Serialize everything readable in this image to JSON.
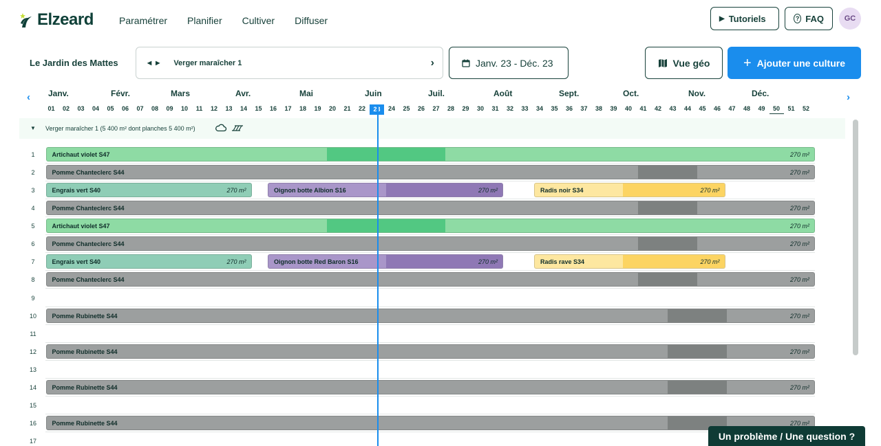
{
  "header": {
    "brand": "Elzeard",
    "nav": [
      "Paramétrer",
      "Planifier",
      "Cultiver",
      "Diffuser"
    ],
    "tutorials_label": "Tutoriels",
    "faq_label": "FAQ",
    "avatar_initials": "GC"
  },
  "toolbar": {
    "farm_name": "Le Jardin des Mattes",
    "plot_name": "Verger maraîcher 1",
    "date_range": "Janv. 23 - Déc. 23",
    "geo_view_label": "Vue géo",
    "add_crop_label": "Ajouter une culture"
  },
  "timeline": {
    "months": [
      "Janv.",
      "Févr.",
      "Mars",
      "Avr.",
      "Mai",
      "Juin",
      "Juil.",
      "Août",
      "Sept.",
      "Oct.",
      "Nov.",
      "Déc."
    ],
    "weeks": [
      "01",
      "02",
      "03",
      "04",
      "05",
      "06",
      "07",
      "08",
      "09",
      "10",
      "11",
      "12",
      "13",
      "14",
      "15",
      "16",
      "17",
      "18",
      "19",
      "20",
      "21",
      "22",
      "23",
      "24",
      "25",
      "26",
      "27",
      "28",
      "29",
      "30",
      "31",
      "32",
      "33",
      "34",
      "35",
      "36",
      "37",
      "38",
      "39",
      "40",
      "41",
      "42",
      "43",
      "44",
      "45",
      "46",
      "47",
      "48",
      "49",
      "50",
      "51",
      "52"
    ],
    "current_week": 23,
    "marked_week": 50
  },
  "plot": {
    "title": "Verger maraîcher 1 (5 400 m² dont planches 5 400 m²)"
  },
  "colors": {
    "artichaut": "#8edba4",
    "artichaut_dark": "#52c882",
    "pomme": "#9c9f9f",
    "pomme_dark": "#7d8180",
    "engrais": "#8fcdb6",
    "oignon": "#a996c9",
    "oignon_dark": "#8f78b5",
    "radis": "#fde7a0",
    "radis_dark": "#fcd462",
    "accent": "#1a8ded"
  },
  "rows": [
    {
      "num": "1",
      "crops": [
        {
          "name": "Artichaut violet S47",
          "area": "270 m²",
          "start": 1,
          "end": 52,
          "color": "artichaut",
          "dark": "artichaut_dark",
          "dark_start": 20,
          "dark_end": 27
        }
      ]
    },
    {
      "num": "2",
      "crops": [
        {
          "name": "Pomme Chanteclerc S44",
          "area": "270 m²",
          "start": 1,
          "end": 52,
          "color": "pomme",
          "dark": "pomme_dark",
          "dark_start": 41,
          "dark_end": 44
        }
      ]
    },
    {
      "num": "3",
      "crops": [
        {
          "name": "Engrais vert S40",
          "area": "270 m²",
          "start": 1,
          "end": 14,
          "color": "engrais"
        },
        {
          "name": "Oignon botte Albion S16",
          "area": "270 m²",
          "start": 16,
          "end": 31,
          "color": "oignon",
          "dark": "oignon_dark",
          "dark_start": 24,
          "dark_end": 31
        },
        {
          "name": "Radis noir S34",
          "area": "270 m²",
          "start": 34,
          "end": 46,
          "color": "radis",
          "dark": "radis_dark",
          "dark_start": 40,
          "dark_end": 46
        }
      ]
    },
    {
      "num": "4",
      "crops": [
        {
          "name": "Pomme Chanteclerc S44",
          "area": "270 m²",
          "start": 1,
          "end": 52,
          "color": "pomme",
          "dark": "pomme_dark",
          "dark_start": 41,
          "dark_end": 44
        }
      ]
    },
    {
      "num": "5",
      "crops": [
        {
          "name": "Artichaut violet S47",
          "area": "270 m²",
          "start": 1,
          "end": 52,
          "color": "artichaut",
          "dark": "artichaut_dark",
          "dark_start": 20,
          "dark_end": 27
        }
      ]
    },
    {
      "num": "6",
      "crops": [
        {
          "name": "Pomme Chanteclerc S44",
          "area": "270 m²",
          "start": 1,
          "end": 52,
          "color": "pomme",
          "dark": "pomme_dark",
          "dark_start": 41,
          "dark_end": 44
        }
      ]
    },
    {
      "num": "7",
      "crops": [
        {
          "name": "Engrais vert S40",
          "area": "270 m²",
          "start": 1,
          "end": 14,
          "color": "engrais"
        },
        {
          "name": "Oignon botte Red Baron S16",
          "area": "270 m²",
          "start": 16,
          "end": 31,
          "color": "oignon",
          "dark": "oignon_dark",
          "dark_start": 24,
          "dark_end": 31
        },
        {
          "name": "Radis rave S34",
          "area": "270 m²",
          "start": 34,
          "end": 46,
          "color": "radis",
          "dark": "radis_dark",
          "dark_start": 40,
          "dark_end": 46
        }
      ]
    },
    {
      "num": "8",
      "crops": [
        {
          "name": "Pomme Chanteclerc S44",
          "area": "270 m²",
          "start": 1,
          "end": 52,
          "color": "pomme",
          "dark": "pomme_dark",
          "dark_start": 41,
          "dark_end": 44
        }
      ]
    },
    {
      "num": "9",
      "crops": []
    },
    {
      "num": "10",
      "crops": [
        {
          "name": "Pomme Rubinette S44",
          "area": "270 m²",
          "start": 1,
          "end": 52,
          "color": "pomme",
          "dark": "pomme_dark",
          "dark_start": 43,
          "dark_end": 46
        }
      ]
    },
    {
      "num": "11",
      "crops": []
    },
    {
      "num": "12",
      "crops": [
        {
          "name": "Pomme Rubinette S44",
          "area": "270 m²",
          "start": 1,
          "end": 52,
          "color": "pomme",
          "dark": "pomme_dark",
          "dark_start": 43,
          "dark_end": 46
        }
      ]
    },
    {
      "num": "13",
      "crops": []
    },
    {
      "num": "14",
      "crops": [
        {
          "name": "Pomme Rubinette S44",
          "area": "270 m²",
          "start": 1,
          "end": 52,
          "color": "pomme",
          "dark": "pomme_dark",
          "dark_start": 43,
          "dark_end": 46
        }
      ]
    },
    {
      "num": "15",
      "crops": []
    },
    {
      "num": "16",
      "crops": [
        {
          "name": "Pomme Rubinette S44",
          "area": "270 m²",
          "start": 1,
          "end": 52,
          "color": "pomme",
          "dark": "pomme_dark",
          "dark_start": 43,
          "dark_end": 46
        }
      ]
    },
    {
      "num": "17",
      "crops": []
    }
  ],
  "help_label": "Un problème / Une question ?"
}
